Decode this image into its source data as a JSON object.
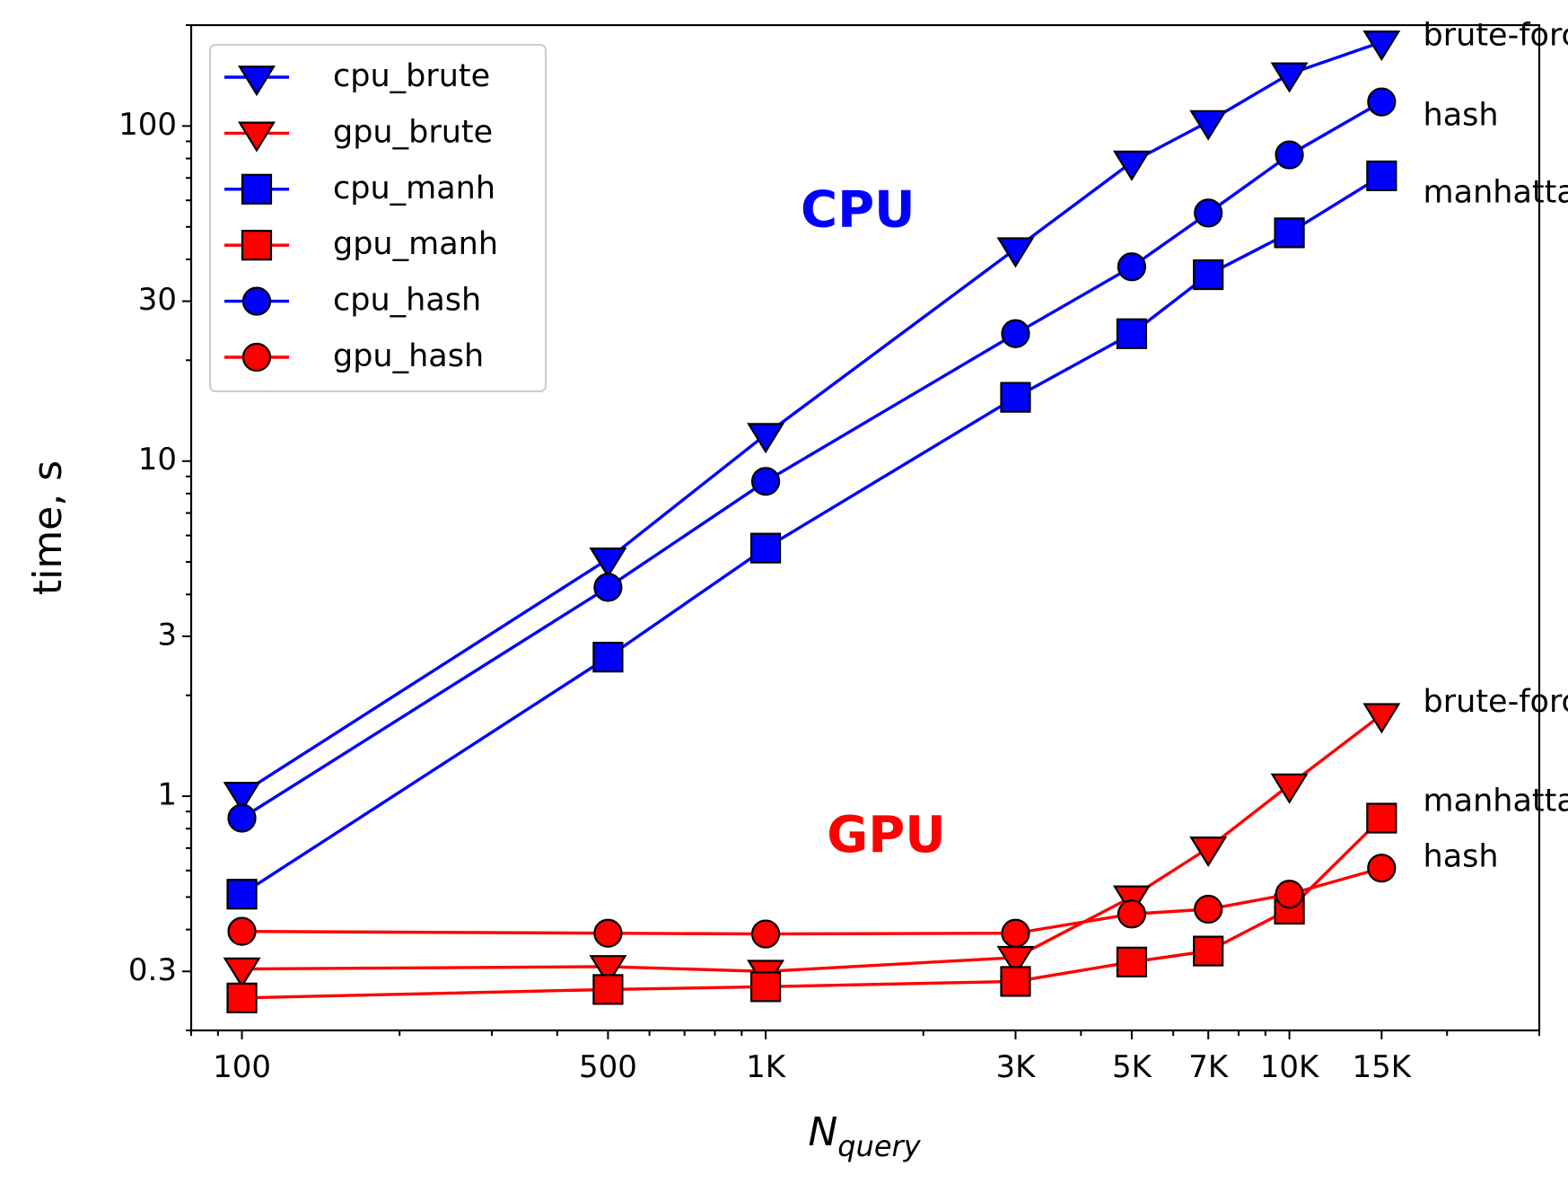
{
  "chart_data": {
    "type": "line",
    "xscale": "log",
    "yscale": "log",
    "xlabel": "N",
    "xlabel_sub": "query",
    "ylabel": "time, s",
    "xlim": [
      80,
      30000
    ],
    "ylim": [
      0.2,
      200
    ],
    "x": [
      100,
      500,
      1000,
      3000,
      5000,
      7000,
      10000,
      15000
    ],
    "x_tick_values": [
      100,
      500,
      1000,
      3000,
      5000,
      7000,
      10000,
      15000
    ],
    "x_tick_labels": [
      "100",
      "500",
      "1K",
      "3K",
      "5K",
      "7K",
      "10K",
      "15K"
    ],
    "y_tick_values": [
      0.3,
      1,
      3,
      10,
      30,
      100
    ],
    "y_tick_labels": [
      "0.3",
      "1",
      "3",
      "10",
      "30",
      "100"
    ],
    "legend_position": "top-left",
    "grid": false,
    "series": [
      {
        "name": "cpu_brute",
        "color": "#0000ff",
        "marker": "triangle-down",
        "values": [
          1.02,
          5.1,
          12.0,
          43,
          78,
          103,
          143,
          178
        ]
      },
      {
        "name": "gpu_brute",
        "color": "#ff0000",
        "marker": "triangle-down",
        "values": [
          0.305,
          0.31,
          0.3,
          0.33,
          0.5,
          0.7,
          1.08,
          1.75
        ]
      },
      {
        "name": "cpu_manh",
        "color": "#0000ff",
        "marker": "square",
        "values": [
          0.51,
          2.6,
          5.5,
          15.5,
          24,
          36,
          48,
          71
        ]
      },
      {
        "name": "gpu_manh",
        "color": "#ff0000",
        "marker": "square",
        "values": [
          0.25,
          0.265,
          0.27,
          0.28,
          0.32,
          0.345,
          0.46,
          0.86
        ]
      },
      {
        "name": "cpu_hash",
        "color": "#0000ff",
        "marker": "circle",
        "values": [
          0.86,
          4.2,
          8.7,
          24,
          38,
          55,
          82,
          118
        ]
      },
      {
        "name": "gpu_hash",
        "color": "#ff0000",
        "marker": "circle",
        "values": [
          0.395,
          0.39,
          0.388,
          0.39,
          0.445,
          0.46,
          0.51,
          0.61
        ]
      }
    ],
    "annotations": [
      {
        "text": "CPU",
        "color": "#0000ff",
        "x": 1500,
        "y": 55,
        "style": "bold"
      },
      {
        "text": "GPU",
        "color": "#ff0000",
        "x": 1700,
        "y": 0.75,
        "style": "bold"
      },
      {
        "text": "brute-force",
        "color": "#000000",
        "x": 18000,
        "y": 185
      },
      {
        "text": "hash",
        "color": "#000000",
        "x": 18000,
        "y": 107
      },
      {
        "text": "manhattan",
        "color": "#000000",
        "x": 18000,
        "y": 63
      },
      {
        "text": "brute-force",
        "color": "#000000",
        "x": 18000,
        "y": 1.9
      },
      {
        "text": "manhattan",
        "color": "#000000",
        "x": 18000,
        "y": 0.96
      },
      {
        "text": "hash",
        "color": "#000000",
        "x": 18000,
        "y": 0.655
      }
    ]
  }
}
